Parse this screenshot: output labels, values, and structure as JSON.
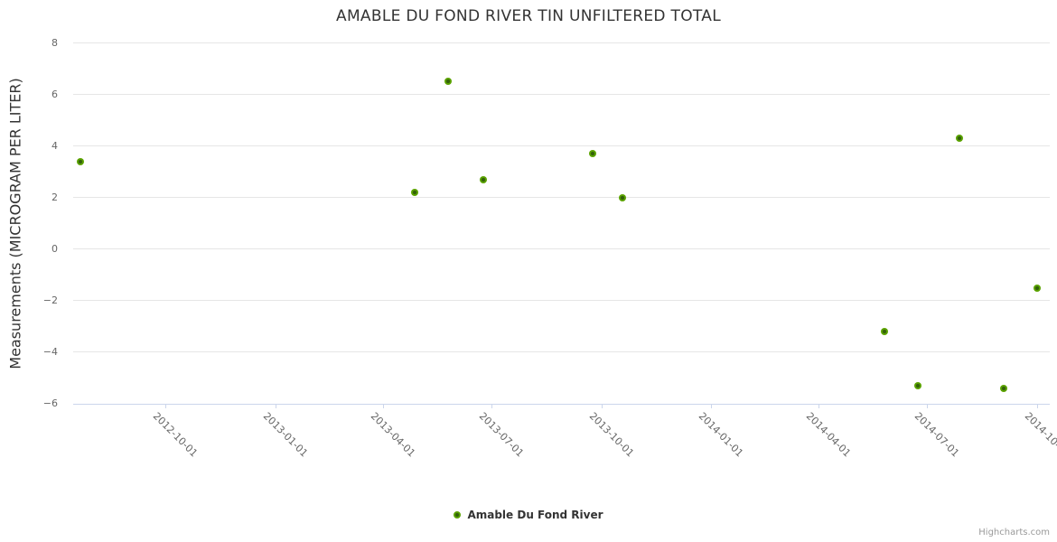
{
  "chart": {
    "title": "AMABLE DU FOND RIVER TIN UNFILTERED TOTAL",
    "credits": "Highcharts.com"
  },
  "chart_data": {
    "type": "scatter",
    "title": "AMABLE DU FOND RIVER TIN UNFILTERED TOTAL",
    "xlabel": "",
    "ylabel": "Measurements (MICROGRAM PER LITER)",
    "ylim": [
      -6,
      8
    ],
    "yticks": [
      8,
      6,
      4,
      2,
      0,
      -2,
      -4,
      -6
    ],
    "xticks": [
      "2012-10-01",
      "2013-01-01",
      "2013-04-01",
      "2013-07-01",
      "2013-10-01",
      "2014-01-01",
      "2014-04-01",
      "2014-07-01",
      "2014-10-01"
    ],
    "grid": "horizontal",
    "legend_position": "bottom-center",
    "series": [
      {
        "name": "Amable Du Fond River",
        "marker_color": "#5ba300",
        "points": [
          {
            "date": "2012-07-22",
            "value": 3.4
          },
          {
            "date": "2013-04-28",
            "value": 2.2
          },
          {
            "date": "2013-05-26",
            "value": 6.5
          },
          {
            "date": "2013-06-24",
            "value": 2.7
          },
          {
            "date": "2013-09-24",
            "value": 3.7
          },
          {
            "date": "2013-10-19",
            "value": 2.0
          },
          {
            "date": "2014-05-26",
            "value": -3.2
          },
          {
            "date": "2014-06-23",
            "value": -5.3
          },
          {
            "date": "2014-07-28",
            "value": 4.3
          },
          {
            "date": "2014-09-03",
            "value": -5.4
          },
          {
            "date": "2014-10-01",
            "value": -1.5
          }
        ]
      }
    ]
  },
  "colors": {
    "marker_ring": "#5ba300",
    "marker_center": "#33610a",
    "grid": "#e6e6e6",
    "axis_line": "#ccd6eb",
    "tick_label": "#666666",
    "title_text": "#333333",
    "legend_text": "#333333",
    "credits_text": "#999999"
  }
}
